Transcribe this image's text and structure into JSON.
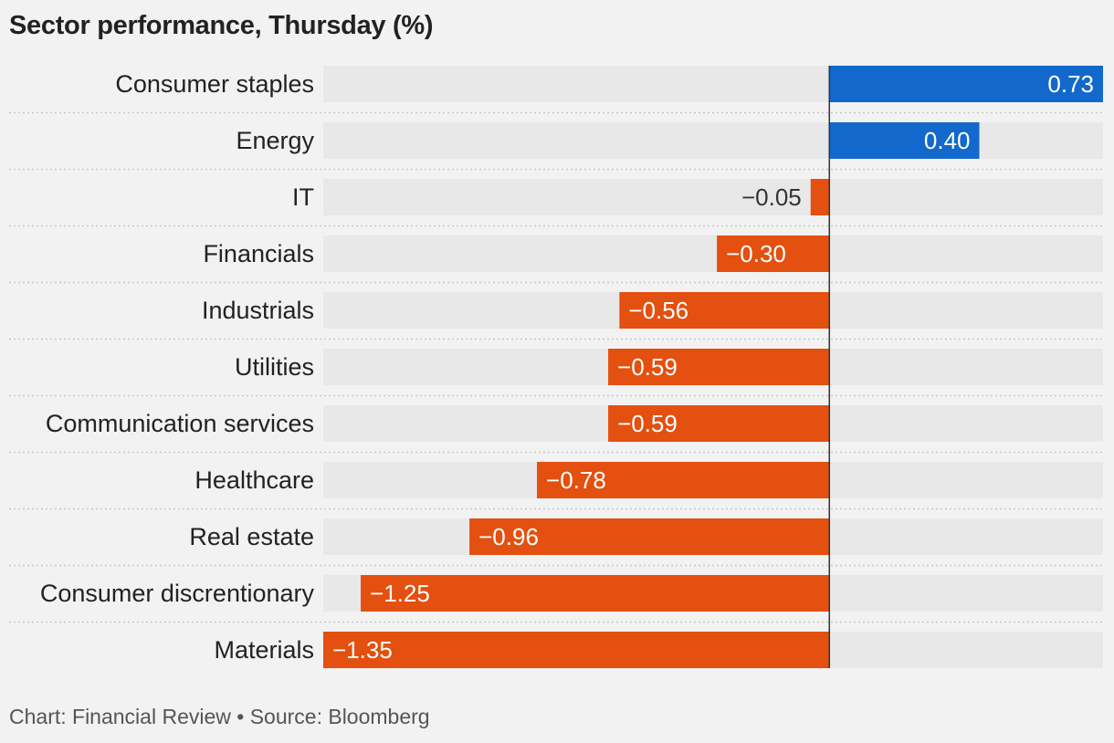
{
  "chart_data": {
    "type": "bar",
    "orientation": "horizontal",
    "title": "Sector performance, Thursday (%)",
    "categories": [
      "Consumer staples",
      "Energy",
      "IT",
      "Financials",
      "Industrials",
      "Utilities",
      "Communication services",
      "Healthcare",
      "Real estate",
      "Consumer discrentionary",
      "Materials"
    ],
    "values": [
      0.73,
      0.4,
      -0.05,
      -0.3,
      -0.56,
      -0.59,
      -0.59,
      -0.78,
      -0.96,
      -1.25,
      -1.35
    ],
    "value_labels": [
      "0.73",
      "0.40",
      "−0.05",
      "−0.30",
      "−0.56",
      "−0.59",
      "−0.59",
      "−0.78",
      "−0.96",
      "−1.25",
      "−1.35"
    ],
    "xlim": [
      -1.35,
      0.73
    ],
    "grid": false,
    "legend": "none",
    "colors": {
      "positive": "#1368cc",
      "negative": "#e3500f",
      "track": "#e8e8e8",
      "zero_line": "#333333",
      "separator": "#c8c8c8",
      "value_label_outside": "#333333",
      "value_label_inside": "#ffffff"
    }
  },
  "footer": "Chart: Financial Review • Source: Bloomberg"
}
